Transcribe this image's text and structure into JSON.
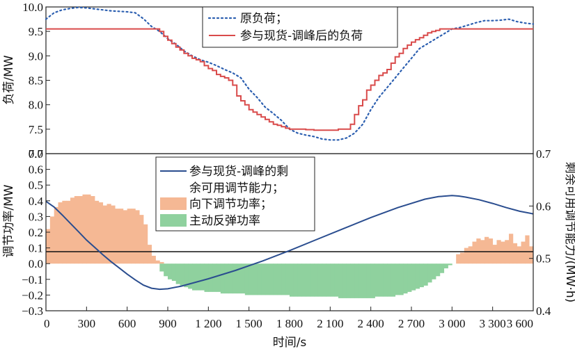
{
  "chart_data": [
    {
      "type": "line",
      "ylabel": "负荷/MW",
      "xlim": [
        0,
        3600
      ],
      "ylim": [
        7.0,
        10.0
      ],
      "yticks": [
        "7.0",
        "7.5",
        "8.0",
        "8.5",
        "9.0",
        "9.5",
        "10.0"
      ],
      "grid": false,
      "legend_position": "top-right",
      "series": [
        {
          "name": "原负荷；",
          "style": "dotted",
          "color": "#2c5fb0",
          "x": [
            0,
            60,
            120,
            180,
            240,
            300,
            360,
            420,
            480,
            540,
            600,
            660,
            720,
            780,
            840,
            900,
            960,
            1020,
            1080,
            1140,
            1200,
            1260,
            1320,
            1380,
            1440,
            1500,
            1560,
            1620,
            1680,
            1740,
            1800,
            1860,
            1920,
            1980,
            2040,
            2100,
            2160,
            2220,
            2280,
            2340,
            2400,
            2460,
            2520,
            2580,
            2640,
            2700,
            2760,
            2820,
            2880,
            2940,
            3000,
            3060,
            3120,
            3180,
            3240,
            3300,
            3360,
            3420,
            3480,
            3540,
            3600
          ],
          "values": [
            9.75,
            9.88,
            9.94,
            9.97,
            9.99,
            9.98,
            9.96,
            9.94,
            9.92,
            9.91,
            9.9,
            9.88,
            9.76,
            9.6,
            9.5,
            9.35,
            9.24,
            9.1,
            9.0,
            8.92,
            8.87,
            8.8,
            8.72,
            8.65,
            8.55,
            8.32,
            8.15,
            7.95,
            7.82,
            7.68,
            7.5,
            7.42,
            7.38,
            7.35,
            7.3,
            7.28,
            7.28,
            7.32,
            7.42,
            7.6,
            7.9,
            8.15,
            8.35,
            8.55,
            8.75,
            8.95,
            9.15,
            9.25,
            9.35,
            9.45,
            9.55,
            9.58,
            9.63,
            9.68,
            9.72,
            9.72,
            9.73,
            9.75,
            9.7,
            9.67,
            9.65
          ]
        },
        {
          "name": "参与现货-调峰后的负荷",
          "style": "step",
          "color": "#d94a4a",
          "x": [
            0,
            750,
            840,
            870,
            900,
            930,
            960,
            990,
            1020,
            1050,
            1080,
            1110,
            1140,
            1170,
            1200,
            1230,
            1260,
            1290,
            1320,
            1350,
            1380,
            1410,
            1440,
            1470,
            1500,
            1530,
            1560,
            1590,
            1620,
            1650,
            1680,
            1710,
            1740,
            1770,
            1800,
            1860,
            1920,
            1980,
            2040,
            2100,
            2160,
            2220,
            2250,
            2280,
            2310,
            2340,
            2370,
            2400,
            2430,
            2460,
            2490,
            2520,
            2550,
            2580,
            2610,
            2640,
            2670,
            2700,
            2730,
            2760,
            2790,
            2820,
            2850,
            2880,
            2910,
            2940,
            2970,
            3000,
            3600
          ],
          "values": [
            9.55,
            9.55,
            9.5,
            9.4,
            9.32,
            9.25,
            9.18,
            9.12,
            9.05,
            9.0,
            8.95,
            8.92,
            8.88,
            8.8,
            8.74,
            8.7,
            8.62,
            8.58,
            8.55,
            8.5,
            8.4,
            8.18,
            8.08,
            8.0,
            7.9,
            7.85,
            7.8,
            7.75,
            7.7,
            7.65,
            7.6,
            7.58,
            7.55,
            7.52,
            7.5,
            7.5,
            7.49,
            7.48,
            7.48,
            7.48,
            7.5,
            7.5,
            7.6,
            7.8,
            7.98,
            8.1,
            8.3,
            8.4,
            8.5,
            8.6,
            8.65,
            8.72,
            8.85,
            8.98,
            9.05,
            9.15,
            9.22,
            9.28,
            9.33,
            9.37,
            9.42,
            9.47,
            9.5,
            9.52,
            9.55,
            9.55,
            9.55,
            9.55,
            9.55
          ]
        }
      ]
    },
    {
      "type": "bar",
      "xlabel": "时间/s",
      "ylabel": "调节功率/MW",
      "y2label": "剩余可用调节能力/(MW·h)",
      "xlim": [
        0,
        3600
      ],
      "ylim": [
        -0.3,
        0.7
      ],
      "y2lim": [
        0.4,
        0.7
      ],
      "xticks": [
        "0",
        "300",
        "600",
        "900",
        "1 200",
        "1 500",
        "1 800",
        "2 100",
        "2 400",
        "2 700",
        "3 000",
        "3 300",
        "3 600"
      ],
      "yticks": [
        "−0.3",
        "−0.2",
        "−0.1",
        "0.0",
        "0.1",
        "0.2",
        "0.3",
        "0.4",
        "0.5",
        "0.6",
        "0.7"
      ],
      "y2ticks": [
        "0.4",
        "0.5",
        "0.6",
        "0.7"
      ],
      "grid": false,
      "legend_position": "top-center",
      "bar_width_s": 30,
      "down_regulation": {
        "name": "向下调节功率；",
        "color": "#f5b894",
        "x": [
          0,
          30,
          60,
          90,
          120,
          150,
          180,
          210,
          240,
          270,
          300,
          330,
          360,
          390,
          420,
          450,
          480,
          510,
          540,
          570,
          600,
          630,
          660,
          690,
          720,
          750,
          780,
          810,
          840,
          3030,
          3060,
          3090,
          3120,
          3150,
          3180,
          3210,
          3240,
          3270,
          3300,
          3330,
          3360,
          3390,
          3420,
          3450,
          3480,
          3510,
          3540,
          3570
        ],
        "values": [
          0.22,
          0.3,
          0.36,
          0.39,
          0.4,
          0.4,
          0.42,
          0.43,
          0.43,
          0.44,
          0.44,
          0.43,
          0.4,
          0.39,
          0.37,
          0.38,
          0.37,
          0.35,
          0.35,
          0.34,
          0.35,
          0.35,
          0.34,
          0.31,
          0.25,
          0.12,
          0.05,
          0.02,
          0.01,
          0.06,
          0.07,
          0.1,
          0.11,
          0.14,
          0.16,
          0.15,
          0.17,
          0.16,
          0.12,
          0.15,
          0.14,
          0.15,
          0.19,
          0.13,
          0.11,
          0.14,
          0.18,
          0.11
        ]
      },
      "rebound": {
        "name": "主动反弹功率",
        "color": "#8fd19e",
        "x": [
          840,
          870,
          900,
          930,
          960,
          990,
          1020,
          1050,
          1080,
          1110,
          1140,
          1170,
          1200,
          1230,
          1260,
          1290,
          1320,
          1350,
          1380,
          1410,
          1440,
          1470,
          1500,
          1530,
          1560,
          1590,
          1620,
          1650,
          1680,
          1710,
          1740,
          1770,
          1800,
          1830,
          1860,
          1890,
          1920,
          1950,
          1980,
          2010,
          2040,
          2070,
          2100,
          2130,
          2160,
          2190,
          2220,
          2250,
          2280,
          2310,
          2340,
          2370,
          2400,
          2430,
          2460,
          2490,
          2520,
          2550,
          2580,
          2610,
          2640,
          2670,
          2700,
          2730,
          2760,
          2790,
          2820,
          2850,
          2880,
          2910,
          2940,
          2970
        ],
        "values": [
          -0.05,
          -0.08,
          -0.1,
          -0.11,
          -0.13,
          -0.14,
          -0.15,
          -0.16,
          -0.17,
          -0.17,
          -0.17,
          -0.18,
          -0.18,
          -0.18,
          -0.18,
          -0.19,
          -0.19,
          -0.19,
          -0.19,
          -0.19,
          -0.19,
          -0.2,
          -0.2,
          -0.2,
          -0.2,
          -0.2,
          -0.2,
          -0.2,
          -0.2,
          -0.2,
          -0.2,
          -0.2,
          -0.21,
          -0.21,
          -0.21,
          -0.21,
          -0.21,
          -0.21,
          -0.21,
          -0.21,
          -0.21,
          -0.21,
          -0.21,
          -0.21,
          -0.22,
          -0.22,
          -0.22,
          -0.22,
          -0.22,
          -0.22,
          -0.22,
          -0.22,
          -0.22,
          -0.21,
          -0.21,
          -0.21,
          -0.21,
          -0.21,
          -0.2,
          -0.2,
          -0.19,
          -0.18,
          -0.17,
          -0.16,
          -0.15,
          -0.14,
          -0.12,
          -0.1,
          -0.08,
          -0.06,
          -0.03,
          -0.01
        ]
      },
      "remaining_capacity": {
        "name": "参与现货-调峰的剩余可用调节能力；",
        "color": "#2a4d8f",
        "axis": "right",
        "x": [
          0,
          60,
          120,
          180,
          240,
          300,
          360,
          420,
          480,
          540,
          600,
          660,
          720,
          780,
          840,
          900,
          1000,
          1200,
          1400,
          1600,
          1800,
          2000,
          2200,
          2400,
          2600,
          2800,
          2900,
          3000,
          3050,
          3100,
          3200,
          3300,
          3400,
          3500,
          3600
        ],
        "values": [
          0.609,
          0.598,
          0.583,
          0.567,
          0.551,
          0.535,
          0.521,
          0.507,
          0.494,
          0.482,
          0.47,
          0.459,
          0.449,
          0.443,
          0.441,
          0.442,
          0.447,
          0.461,
          0.477,
          0.495,
          0.515,
          0.536,
          0.557,
          0.578,
          0.597,
          0.613,
          0.618,
          0.62,
          0.619,
          0.617,
          0.612,
          0.605,
          0.597,
          0.59,
          0.585
        ]
      }
    }
  ]
}
